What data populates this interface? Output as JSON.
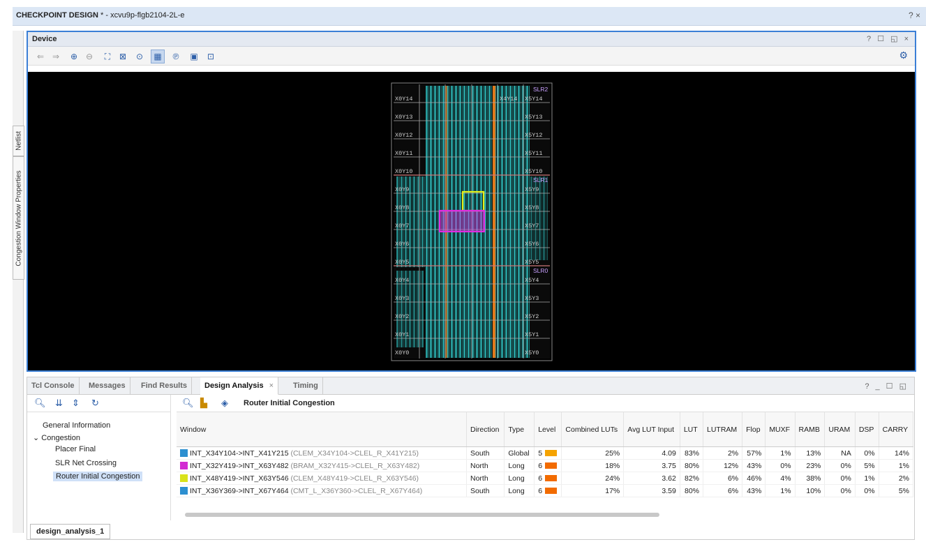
{
  "window": {
    "title_bold": "CHECKPOINT DESIGN",
    "title_rest": " * - xcvu9p-flgb2104-2L-e",
    "controls": "? ×"
  },
  "side_tabs": [
    "Netlist",
    "Congestion Window Properties"
  ],
  "device": {
    "title": "Device",
    "header_controls": "? ☐ ◱ ×",
    "slr_labels": [
      "SLR2",
      "SLR1",
      "SLR0"
    ],
    "clock_regions": [
      "X0Y14",
      "X0Y13",
      "X0Y12",
      "X0Y11",
      "X0Y10",
      "X0Y9",
      "X0Y8",
      "X0Y7",
      "X0Y6",
      "X0Y5",
      "X0Y4",
      "X0Y3",
      "X0Y2",
      "X0Y1",
      "X0Y0",
      "X5Y14",
      "X5Y13",
      "X5Y12",
      "X5Y11",
      "X5Y10",
      "X5Y9",
      "X5Y8",
      "X5Y7",
      "X5Y6",
      "X5Y5",
      "X5Y4",
      "X5Y3",
      "X5Y2",
      "X5Y1",
      "X5Y0",
      "X4Y14"
    ],
    "colors": {
      "fabric": "#2bb4b4",
      "highlight_yellow": "#e4f21a",
      "highlight_magenta": "#e02ce0",
      "orange_column": "#e07a1e"
    }
  },
  "bottom_panel": {
    "tabs": [
      {
        "label": "Tcl Console",
        "active": false
      },
      {
        "label": "Messages",
        "active": false
      },
      {
        "label": "Find Results",
        "active": false
      },
      {
        "label": "Design Analysis",
        "active": true
      },
      {
        "label": "Timing",
        "active": false
      }
    ],
    "tab_close": "×",
    "controls": "? _ ☐ ◱",
    "tree": {
      "general": "General Information",
      "congestion": "Congestion",
      "items": [
        "Placer Final",
        "SLR Net Crossing",
        "Router Initial Congestion"
      ]
    },
    "report_title": "Router Initial Congestion",
    "columns": [
      "Window",
      "Direction",
      "Type",
      "Level",
      "Combined LUTs",
      "Avg LUT Input",
      "LUT",
      "LUTRAM",
      "Flop",
      "MUXF",
      "RAMB",
      "URAM",
      "DSP",
      "CARRY"
    ],
    "rows": [
      {
        "icon": "grid-icon-blue",
        "window": "INT_X34Y104->INT_X41Y215",
        "detail": "(CLEM_X34Y104->CLEL_R_X41Y215)",
        "direction": "South",
        "type": "Global",
        "level": "5",
        "level_color": "#f5a300",
        "combined_luts": "25%",
        "avg_lut_input": "4.09",
        "lut": "83%",
        "lutram": "2%",
        "flop": "57%",
        "muxf": "1%",
        "ramb": "13%",
        "uram": "NA",
        "dsp": "0%",
        "carry": "14%"
      },
      {
        "icon": "grid-icon-magenta",
        "window": "INT_X32Y419->INT_X63Y482",
        "detail": "(BRAM_X32Y415->CLEL_R_X63Y482)",
        "direction": "North",
        "type": "Long",
        "level": "6",
        "level_color": "#f26b00",
        "combined_luts": "18%",
        "avg_lut_input": "3.75",
        "lut": "80%",
        "lutram": "12%",
        "flop": "43%",
        "muxf": "0%",
        "ramb": "23%",
        "uram": "0%",
        "dsp": "5%",
        "carry": "1%"
      },
      {
        "icon": "grid-icon-yellow",
        "window": "INT_X48Y419->INT_X63Y546",
        "detail": "(CLEM_X48Y419->CLEL_R_X63Y546)",
        "direction": "North",
        "type": "Long",
        "level": "6",
        "level_color": "#f26b00",
        "combined_luts": "24%",
        "avg_lut_input": "3.62",
        "lut": "82%",
        "lutram": "6%",
        "flop": "46%",
        "muxf": "4%",
        "ramb": "38%",
        "uram": "0%",
        "dsp": "1%",
        "carry": "2%"
      },
      {
        "icon": "grid-icon-blue",
        "window": "INT_X36Y369->INT_X67Y464",
        "detail": "(CMT_L_X36Y360->CLEL_R_X67Y464)",
        "direction": "South",
        "type": "Long",
        "level": "6",
        "level_color": "#f26b00",
        "combined_luts": "17%",
        "avg_lut_input": "3.59",
        "lut": "80%",
        "lutram": "6%",
        "flop": "43%",
        "muxf": "1%",
        "ramb": "10%",
        "uram": "0%",
        "dsp": "0%",
        "carry": "5%"
      }
    ],
    "bottom_tab": "design_analysis_1"
  }
}
